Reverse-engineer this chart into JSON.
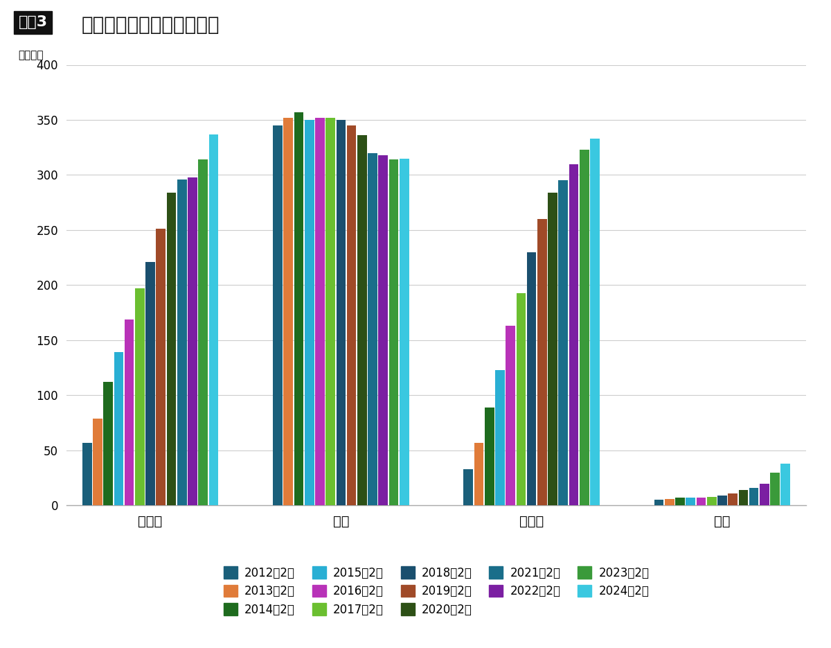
{
  "title_box": "図表3",
  "title_main": "コメダの地域別店舗数推移",
  "ylabel": "（店舗）",
  "categories": [
    "東日本",
    "中京",
    "西日本",
    "海外"
  ],
  "series_labels": [
    "2012年2月",
    "2013年2月",
    "2014年2月",
    "2015年2月",
    "2016年2月",
    "2017年2月",
    "2018年2月",
    "2019年2月",
    "2020年2月",
    "2021年2月",
    "2022年2月",
    "2023年2月",
    "2024年2月"
  ],
  "colors": [
    "#1a5f7a",
    "#e07b39",
    "#1e6b1e",
    "#29afd4",
    "#b832b8",
    "#6bbf30",
    "#1a4f6e",
    "#a04a28",
    "#2d5016",
    "#1a6e8a",
    "#7b1fa2",
    "#3a9a3a",
    "#3ac8e0"
  ],
  "data": {
    "東日本": [
      57,
      79,
      112,
      139,
      169,
      197,
      221,
      251,
      284,
      296,
      298,
      314,
      337
    ],
    "中京": [
      345,
      352,
      357,
      350,
      352,
      352,
      350,
      345,
      336,
      320,
      318,
      314,
      315
    ],
    "西日本": [
      33,
      57,
      89,
      123,
      163,
      193,
      230,
      260,
      284,
      295,
      310,
      323,
      333
    ],
    "海外": [
      5,
      6,
      7,
      7,
      7,
      8,
      9,
      11,
      14,
      16,
      20,
      30,
      38
    ]
  },
  "ylim": [
    0,
    400
  ],
  "yticks": [
    0,
    50,
    100,
    150,
    200,
    250,
    300,
    350,
    400
  ],
  "background_color": "#ffffff",
  "grid_color": "#cccccc",
  "bar_width": 0.055,
  "group_gaps": [
    0.28,
    0.28,
    0.28
  ]
}
